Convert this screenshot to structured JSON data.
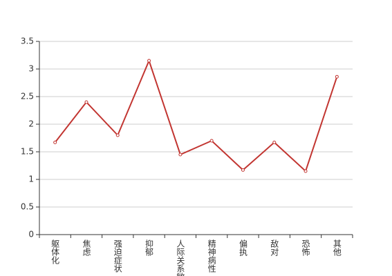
{
  "chart_data": {
    "type": "line",
    "categories": [
      "躯体化",
      "焦虑",
      "强迫症状",
      "抑郁",
      "人际关系敏感",
      "精神病性",
      "偏执",
      "敌对",
      "恐怖",
      "其他"
    ],
    "series": [
      {
        "color": "#c23531",
        "values": [
          1.67,
          2.4,
          1.8,
          3.15,
          1.45,
          1.7,
          1.17,
          1.67,
          1.15,
          2.86
        ]
      }
    ],
    "ylim": [
      0,
      3.5
    ],
    "yticks": [
      0,
      0.5,
      1,
      1.5,
      2,
      2.5,
      3,
      3.5
    ],
    "grid": true
  }
}
